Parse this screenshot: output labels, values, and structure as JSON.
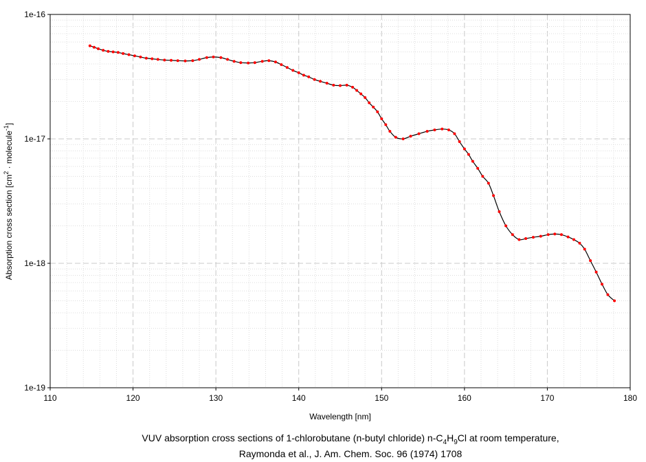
{
  "chart_data": {
    "type": "line",
    "title": "",
    "xlabel": "Wavelength [nm]",
    "ylabel": {
      "main": "Absorption cross section [cm",
      "sup1": "2",
      "mid": " · molecule",
      "sup2": "-1",
      "end": "]"
    },
    "xlim": [
      110,
      180
    ],
    "ylim": [
      1e-19,
      1e-16
    ],
    "yscale": "log",
    "grid": true,
    "x_ticks": [
      110,
      120,
      130,
      140,
      150,
      160,
      170,
      180
    ],
    "x_tick_labels": [
      "110",
      "120",
      "130",
      "140",
      "150",
      "160",
      "170",
      "180"
    ],
    "y_ticks": [
      1e-19,
      1e-18,
      1e-17,
      1e-16
    ],
    "y_tick_labels": [
      "1e-19",
      "1e-18",
      "1e-17",
      "1e-16"
    ],
    "series": [
      {
        "line_color": "#000000",
        "marker_color": "#ff0000",
        "x": [
          114.8,
          115.3,
          115.8,
          116.4,
          117.0,
          117.6,
          118.2,
          118.8,
          119.5,
          120.2,
          120.9,
          121.6,
          122.3,
          123.0,
          123.8,
          124.6,
          125.4,
          126.3,
          127.2,
          128.0,
          128.9,
          129.7,
          130.6,
          131.4,
          132.2,
          133.0,
          133.9,
          134.7,
          135.6,
          136.4,
          137.2,
          137.9,
          138.6,
          139.3,
          140.0,
          140.6,
          141.2,
          141.9,
          142.6,
          143.4,
          144.2,
          145.0,
          145.8,
          146.5,
          147.0,
          147.5,
          148.0,
          148.5,
          149.0,
          149.5,
          150.0,
          150.5,
          151.0,
          151.7,
          152.6,
          153.5,
          154.5,
          155.5,
          156.4,
          157.3,
          158.1,
          158.8,
          159.4,
          160.0,
          160.5,
          161.0,
          161.6,
          162.2,
          162.9,
          163.5,
          164.2,
          165.0,
          165.8,
          166.6,
          167.4,
          168.3,
          169.2,
          170.1,
          170.9,
          171.7,
          172.5,
          173.2,
          173.9,
          174.5,
          175.2,
          175.9,
          176.6,
          177.3,
          178.1
        ],
        "y": [
          5.6e-17,
          5.45e-17,
          5.3e-17,
          5.15e-17,
          5.05e-17,
          5e-17,
          4.95e-17,
          4.85e-17,
          4.75e-17,
          4.65e-17,
          4.55e-17,
          4.45e-17,
          4.4e-17,
          4.35e-17,
          4.3e-17,
          4.28e-17,
          4.25e-17,
          4.23e-17,
          4.25e-17,
          4.35e-17,
          4.5e-17,
          4.55e-17,
          4.5e-17,
          4.35e-17,
          4.2e-17,
          4.1e-17,
          4.07e-17,
          4.1e-17,
          4.2e-17,
          4.25e-17,
          4.15e-17,
          3.95e-17,
          3.75e-17,
          3.55e-17,
          3.4e-17,
          3.25e-17,
          3.15e-17,
          3e-17,
          2.9e-17,
          2.8e-17,
          2.7e-17,
          2.68e-17,
          2.7e-17,
          2.6e-17,
          2.45e-17,
          2.3e-17,
          2.15e-17,
          1.95e-17,
          1.8e-17,
          1.65e-17,
          1.45e-17,
          1.3e-17,
          1.15e-17,
          1.03e-17,
          1e-17,
          1.05e-17,
          1.1e-17,
          1.15e-17,
          1.18e-17,
          1.2e-17,
          1.18e-17,
          1.1e-17,
          9.5e-18,
          8.3e-18,
          7.5e-18,
          6.6e-18,
          5.8e-18,
          5e-18,
          4.4e-18,
          3.5e-18,
          2.6e-18,
          2e-18,
          1.7e-18,
          1.55e-18,
          1.58e-18,
          1.62e-18,
          1.65e-18,
          1.7e-18,
          1.72e-18,
          1.7e-18,
          1.63e-18,
          1.55e-18,
          1.45e-18,
          1.3e-18,
          1.05e-18,
          8.5e-19,
          6.8e-19,
          5.6e-19,
          5e-19
        ]
      }
    ]
  },
  "caption": {
    "line1_pre": "VUV absorption cross sections of 1-chlorobutane (n-butyl chloride) n-C",
    "sub1": "4",
    "mid": "H",
    "sub2": "9",
    "line1_post": "Cl at room temperature,",
    "line2": "Raymonda et al., J. Am. Chem. Soc. 96 (1974) 1708"
  }
}
